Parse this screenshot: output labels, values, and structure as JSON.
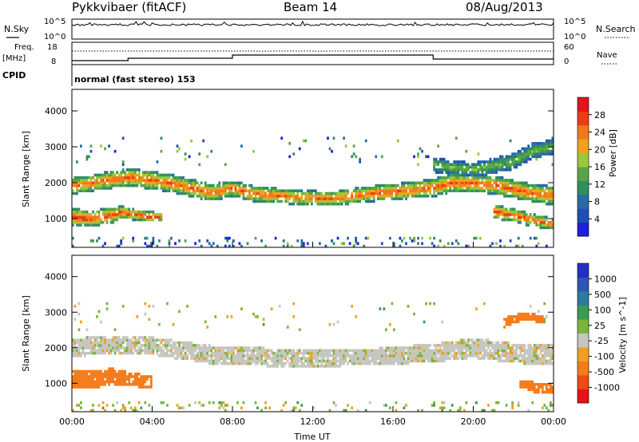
{
  "header": {
    "station": "Pykkvibaer (fitACF)",
    "beam": "Beam 14",
    "date": "08/Aug/2013"
  },
  "panels": {
    "nsky": {
      "left_label": "N.Sky",
      "right_label": "N.Search",
      "left_ticks": [
        "10^5",
        "10^0"
      ],
      "right_ticks": [
        "10^5",
        "10^0"
      ]
    },
    "freq": {
      "left_label_1": "Freq.",
      "left_label_2": "[MHz]",
      "left_ticks": [
        "18",
        "8"
      ],
      "right_label": "Nave",
      "right_ticks": [
        "60",
        "0"
      ]
    },
    "cpid": {
      "label": "CPID",
      "text": "normal (fast stereo) 153"
    }
  },
  "colors": {
    "power_scale": [
      "#1f1fe0",
      "#1e50b4",
      "#2a6aa8",
      "#2f8f5e",
      "#58a548",
      "#9ac83a",
      "#f2a21a",
      "#f07a1a",
      "#ee3b17",
      "#e8121a"
    ],
    "velocity_scale": [
      "#2230c8",
      "#2d57b6",
      "#2e7aa0",
      "#3b9b4e",
      "#7ab53a",
      "#c6c6c0",
      "#f0a020",
      "#f57c1a",
      "#ee4a12",
      "#e8121a"
    ]
  },
  "chart_data": [
    {
      "type": "heatmap",
      "title": "",
      "quantity": "Power",
      "xlabel": "",
      "ylabel": "Slant Range [km]",
      "xlim": [
        "00:00",
        "24:00"
      ],
      "ylim": [
        200,
        4600
      ],
      "x_ticks": [
        "00:00",
        "04:00",
        "08:00",
        "12:00",
        "16:00",
        "20:00",
        "00:00"
      ],
      "y_ticks": [
        1000,
        2000,
        3000,
        4000
      ],
      "colorbar": {
        "label": "Power [dB]",
        "range": [
          0,
          32
        ],
        "ticks": [
          "4",
          "8",
          "12",
          "16",
          "20",
          "24",
          "28"
        ]
      },
      "bands": [
        {
          "name": "primary",
          "points": [
            [
              0,
              1900,
              230
            ],
            [
              1.5,
              2050,
              230
            ],
            [
              3,
              2150,
              250
            ],
            [
              5,
              1980,
              250
            ],
            [
              7,
              1720,
              240
            ],
            [
              8,
              1850,
              220
            ],
            [
              9,
              1700,
              220
            ],
            [
              11,
              1600,
              200
            ],
            [
              13,
              1560,
              200
            ],
            [
              15,
              1700,
              220
            ],
            [
              17,
              1800,
              230
            ],
            [
              18,
              1860,
              260
            ],
            [
              19,
              2000,
              260
            ],
            [
              21,
              1950,
              260
            ],
            [
              23,
              1700,
              260
            ],
            [
              24,
              1650,
              260
            ]
          ],
          "peak_db": 26
        },
        {
          "name": "lower",
          "points": [
            [
              0,
              1050,
              240
            ],
            [
              1,
              1000,
              220
            ],
            [
              2,
              1100,
              220
            ],
            [
              2.5,
              1180,
              170
            ],
            [
              3,
              1120,
              150
            ],
            [
              4,
              1050,
              150
            ],
            [
              4.5,
              1050,
              100
            ]
          ],
          "peak_db": 28
        },
        {
          "name": "upper",
          "points": [
            [
              18,
              2500,
              200
            ],
            [
              20,
              2350,
              200
            ],
            [
              22,
              2600,
              220
            ],
            [
              23,
              2900,
              220
            ],
            [
              24,
              3000,
              200
            ]
          ],
          "peak_db": 16
        },
        {
          "name": "evening-low",
          "points": [
            [
              21,
              1200,
              200
            ],
            [
              22,
              1100,
              180
            ],
            [
              23,
              950,
              180
            ],
            [
              24,
              850,
              150
            ]
          ],
          "peak_db": 27
        }
      ]
    },
    {
      "type": "heatmap",
      "title": "",
      "quantity": "Velocity",
      "xlabel": "Time UT",
      "ylabel": "Slant Range [km]",
      "xlim": [
        "00:00",
        "24:00"
      ],
      "ylim": [
        200,
        4600
      ],
      "x_ticks": [
        "00:00",
        "04:00",
        "08:00",
        "12:00",
        "16:00",
        "20:00",
        "00:00"
      ],
      "y_ticks": [
        1000,
        2000,
        3000,
        4000
      ],
      "colorbar": {
        "label": "Velocity [m s^-1]",
        "ticks": [
          "1000",
          "500",
          "100",
          "25",
          "-25",
          "-100",
          "-500",
          "-1000"
        ]
      },
      "bands": [
        {
          "name": "ground-scatter",
          "points": [
            [
              0,
              2000,
              260
            ],
            [
              2,
              2100,
              250
            ],
            [
              4,
              2050,
              250
            ],
            [
              7,
              1800,
              260
            ],
            [
              9,
              1750,
              260
            ],
            [
              12,
              1700,
              240
            ],
            [
              15,
              1750,
              240
            ],
            [
              18,
              1850,
              260
            ],
            [
              20,
              2000,
              280
            ],
            [
              22,
              1850,
              280
            ],
            [
              24,
              1800,
              280
            ]
          ],
          "velocity": 0
        },
        {
          "name": "flow-west",
          "points": [
            [
              0,
              1150,
              260
            ],
            [
              1,
              1100,
              260
            ],
            [
              2,
              1200,
              220
            ],
            [
              3,
              1100,
              200
            ],
            [
              4,
              1050,
              160
            ]
          ],
          "velocity": -300
        },
        {
          "name": "flow-evening",
          "points": [
            [
              22.3,
              1000,
              100
            ],
            [
              23,
              900,
              150
            ],
            [
              24,
              850,
              120
            ]
          ],
          "velocity": -250
        },
        {
          "name": "flow-upper",
          "points": [
            [
              21.5,
              2700,
              130
            ],
            [
              22.5,
              2900,
              120
            ],
            [
              23.5,
              2800,
              100
            ]
          ],
          "velocity": -200
        }
      ]
    }
  ],
  "scan_flags": {
    "nave_breakpoints": [
      "08:00",
      "18:00"
    ]
  }
}
